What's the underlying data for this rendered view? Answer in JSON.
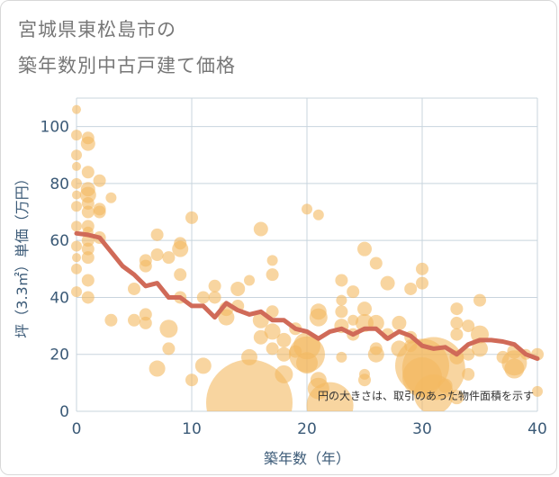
{
  "title": {
    "line1": "宮城県東松島市の",
    "line2": "築年数別中古戸建て価格"
  },
  "note": "円の大きさは、取引のあった物件面積を示す",
  "colors": {
    "bubble": "#f3b960",
    "trend": "#d06a58",
    "grid": "#c8d4de",
    "tick": "#3b5a77"
  },
  "chart_data": {
    "type": "scatter",
    "xlabel": "築年数（年）",
    "ylabel": "坪（3.3㎡）単価（万円）",
    "xlim": [
      0,
      40
    ],
    "ylim": [
      0,
      110
    ],
    "xticks": [
      0,
      10,
      20,
      30,
      40
    ],
    "yticks": [
      0,
      20,
      40,
      60,
      80,
      100
    ],
    "grid": true,
    "points": [
      {
        "x": 0,
        "y": 106,
        "s": 5
      },
      {
        "x": 0,
        "y": 97,
        "s": 6
      },
      {
        "x": 0,
        "y": 90,
        "s": 6
      },
      {
        "x": 0,
        "y": 86,
        "s": 5
      },
      {
        "x": 0,
        "y": 80,
        "s": 6
      },
      {
        "x": 0,
        "y": 76,
        "s": 5
      },
      {
        "x": 0,
        "y": 72,
        "s": 6
      },
      {
        "x": 0,
        "y": 65,
        "s": 6
      },
      {
        "x": 0,
        "y": 58,
        "s": 6
      },
      {
        "x": 0,
        "y": 54,
        "s": 5
      },
      {
        "x": 0,
        "y": 50,
        "s": 6
      },
      {
        "x": 0,
        "y": 42,
        "s": 6
      },
      {
        "x": 1,
        "y": 96,
        "s": 7
      },
      {
        "x": 1,
        "y": 94,
        "s": 8
      },
      {
        "x": 1,
        "y": 84,
        "s": 7
      },
      {
        "x": 1,
        "y": 78,
        "s": 8
      },
      {
        "x": 1,
        "y": 76,
        "s": 9
      },
      {
        "x": 1,
        "y": 73,
        "s": 7
      },
      {
        "x": 1,
        "y": 70,
        "s": 7
      },
      {
        "x": 1,
        "y": 65,
        "s": 7
      },
      {
        "x": 1,
        "y": 63,
        "s": 6
      },
      {
        "x": 1,
        "y": 60,
        "s": 7
      },
      {
        "x": 1,
        "y": 57,
        "s": 7
      },
      {
        "x": 1,
        "y": 54,
        "s": 7
      },
      {
        "x": 1,
        "y": 46,
        "s": 7
      },
      {
        "x": 1,
        "y": 40,
        "s": 7
      },
      {
        "x": 2,
        "y": 81,
        "s": 7
      },
      {
        "x": 2,
        "y": 71,
        "s": 7
      },
      {
        "x": 2,
        "y": 70,
        "s": 7
      },
      {
        "x": 2,
        "y": 61,
        "s": 7
      },
      {
        "x": 3,
        "y": 75,
        "s": 6
      },
      {
        "x": 3,
        "y": 32,
        "s": 7
      },
      {
        "x": 5,
        "y": 43,
        "s": 7
      },
      {
        "x": 5,
        "y": 32,
        "s": 7
      },
      {
        "x": 6,
        "y": 53,
        "s": 7
      },
      {
        "x": 6,
        "y": 51,
        "s": 7
      },
      {
        "x": 6,
        "y": 34,
        "s": 7
      },
      {
        "x": 6,
        "y": 31,
        "s": 7
      },
      {
        "x": 7,
        "y": 62,
        "s": 7
      },
      {
        "x": 7,
        "y": 55,
        "s": 7
      },
      {
        "x": 7,
        "y": 15,
        "s": 9
      },
      {
        "x": 8,
        "y": 54,
        "s": 7
      },
      {
        "x": 8,
        "y": 29,
        "s": 10
      },
      {
        "x": 8,
        "y": 22,
        "s": 7
      },
      {
        "x": 9,
        "y": 59,
        "s": 7
      },
      {
        "x": 9,
        "y": 57,
        "s": 9
      },
      {
        "x": 9,
        "y": 48,
        "s": 7
      },
      {
        "x": 9,
        "y": 40,
        "s": 7
      },
      {
        "x": 10,
        "y": 68,
        "s": 7
      },
      {
        "x": 10,
        "y": 11,
        "s": 7
      },
      {
        "x": 11,
        "y": 40,
        "s": 7
      },
      {
        "x": 11,
        "y": 16,
        "s": 9
      },
      {
        "x": 12,
        "y": 44,
        "s": 7
      },
      {
        "x": 12,
        "y": 40,
        "s": 7
      },
      {
        "x": 13,
        "y": 36,
        "s": 8
      },
      {
        "x": 13,
        "y": 33,
        "s": 9
      },
      {
        "x": 14,
        "y": 43,
        "s": 8
      },
      {
        "x": 14,
        "y": 37,
        "s": 7
      },
      {
        "x": 15,
        "y": 46,
        "s": 6
      },
      {
        "x": 15,
        "y": 19,
        "s": 9
      },
      {
        "x": 15,
        "y": 3,
        "s": 48
      },
      {
        "x": 16,
        "y": 64,
        "s": 8
      },
      {
        "x": 16,
        "y": 32,
        "s": 9
      },
      {
        "x": 16,
        "y": 26,
        "s": 8
      },
      {
        "x": 17,
        "y": 53,
        "s": 6
      },
      {
        "x": 17,
        "y": 48,
        "s": 7
      },
      {
        "x": 17,
        "y": 35,
        "s": 7
      },
      {
        "x": 17,
        "y": 28,
        "s": 9
      },
      {
        "x": 17,
        "y": 22,
        "s": 7
      },
      {
        "x": 18,
        "y": 25,
        "s": 8
      },
      {
        "x": 18,
        "y": 20,
        "s": 8
      },
      {
        "x": 18,
        "y": 13,
        "s": 10
      },
      {
        "x": 19,
        "y": 29,
        "s": 7
      },
      {
        "x": 19,
        "y": 21,
        "s": 7
      },
      {
        "x": 20,
        "y": 71,
        "s": 6
      },
      {
        "x": 20,
        "y": 23,
        "s": 15
      },
      {
        "x": 20,
        "y": 20,
        "s": 20
      },
      {
        "x": 20,
        "y": 17,
        "s": 12
      },
      {
        "x": 21,
        "y": 69,
        "s": 6
      },
      {
        "x": 21,
        "y": 35,
        "s": 9
      },
      {
        "x": 21,
        "y": 33,
        "s": 10
      },
      {
        "x": 21,
        "y": 11,
        "s": 9
      },
      {
        "x": 21,
        "y": 8,
        "s": 12
      },
      {
        "x": 22,
        "y": 2,
        "s": 26
      },
      {
        "x": 23,
        "y": 46,
        "s": 7
      },
      {
        "x": 23,
        "y": 39,
        "s": 6
      },
      {
        "x": 23,
        "y": 35,
        "s": 7
      },
      {
        "x": 23,
        "y": 30,
        "s": 8
      },
      {
        "x": 23,
        "y": 19,
        "s": 6
      },
      {
        "x": 24,
        "y": 42,
        "s": 7
      },
      {
        "x": 24,
        "y": 32,
        "s": 6
      },
      {
        "x": 24,
        "y": 27,
        "s": 7
      },
      {
        "x": 25,
        "y": 57,
        "s": 8
      },
      {
        "x": 25,
        "y": 36,
        "s": 8
      },
      {
        "x": 25,
        "y": 31,
        "s": 10
      },
      {
        "x": 25,
        "y": 13,
        "s": 6
      },
      {
        "x": 25,
        "y": 11,
        "s": 7
      },
      {
        "x": 26,
        "y": 52,
        "s": 7
      },
      {
        "x": 26,
        "y": 31,
        "s": 9
      },
      {
        "x": 26,
        "y": 22,
        "s": 7
      },
      {
        "x": 26,
        "y": 20,
        "s": 9
      },
      {
        "x": 27,
        "y": 45,
        "s": 8
      },
      {
        "x": 27,
        "y": 27,
        "s": 7
      },
      {
        "x": 28,
        "y": 31,
        "s": 8
      },
      {
        "x": 28,
        "y": 22,
        "s": 9
      },
      {
        "x": 29,
        "y": 43,
        "s": 7
      },
      {
        "x": 29,
        "y": 26,
        "s": 7
      },
      {
        "x": 29,
        "y": 23,
        "s": 7
      },
      {
        "x": 30,
        "y": 50,
        "s": 7
      },
      {
        "x": 30,
        "y": 45,
        "s": 7
      },
      {
        "x": 30,
        "y": 16,
        "s": 30
      },
      {
        "x": 30,
        "y": 12,
        "s": 22
      },
      {
        "x": 31,
        "y": 15,
        "s": 35
      },
      {
        "x": 31,
        "y": 6,
        "s": 22
      },
      {
        "x": 32,
        "y": 9,
        "s": 8
      },
      {
        "x": 33,
        "y": 36,
        "s": 7
      },
      {
        "x": 33,
        "y": 31,
        "s": 7
      },
      {
        "x": 33,
        "y": 27,
        "s": 7
      },
      {
        "x": 33,
        "y": 19,
        "s": 8
      },
      {
        "x": 33,
        "y": 5,
        "s": 8
      },
      {
        "x": 34,
        "y": 30,
        "s": 7
      },
      {
        "x": 34,
        "y": 20,
        "s": 7
      },
      {
        "x": 34,
        "y": 13,
        "s": 7
      },
      {
        "x": 35,
        "y": 39,
        "s": 7
      },
      {
        "x": 35,
        "y": 27,
        "s": 10
      },
      {
        "x": 35,
        "y": 22,
        "s": 9
      },
      {
        "x": 37,
        "y": 19,
        "s": 7
      },
      {
        "x": 38,
        "y": 21,
        "s": 8
      },
      {
        "x": 38,
        "y": 17,
        "s": 14
      },
      {
        "x": 38,
        "y": 15,
        "s": 11
      },
      {
        "x": 39,
        "y": 20,
        "s": 6
      },
      {
        "x": 40,
        "y": 20,
        "s": 7
      },
      {
        "x": 40,
        "y": 7,
        "s": 6
      }
    ],
    "trend": {
      "name": "",
      "x": [
        0,
        1,
        2,
        3,
        4,
        5,
        6,
        7,
        8,
        9,
        10,
        11,
        12,
        13,
        14,
        15,
        16,
        17,
        18,
        19,
        20,
        21,
        22,
        23,
        24,
        25,
        26,
        27,
        28,
        29,
        30,
        31,
        32,
        33,
        34,
        35,
        36,
        37,
        38,
        39,
        40
      ],
      "y": [
        62.5,
        62,
        61,
        56,
        51,
        48,
        44,
        45,
        40,
        40,
        37,
        37,
        33,
        38,
        35.5,
        34,
        35,
        32,
        32,
        29,
        28,
        25.5,
        28,
        29,
        27,
        29,
        29,
        25.5,
        28,
        26.5,
        23,
        22,
        22.5,
        20,
        23.5,
        25,
        25,
        24.5,
        23.5,
        20,
        18.5
      ]
    }
  }
}
